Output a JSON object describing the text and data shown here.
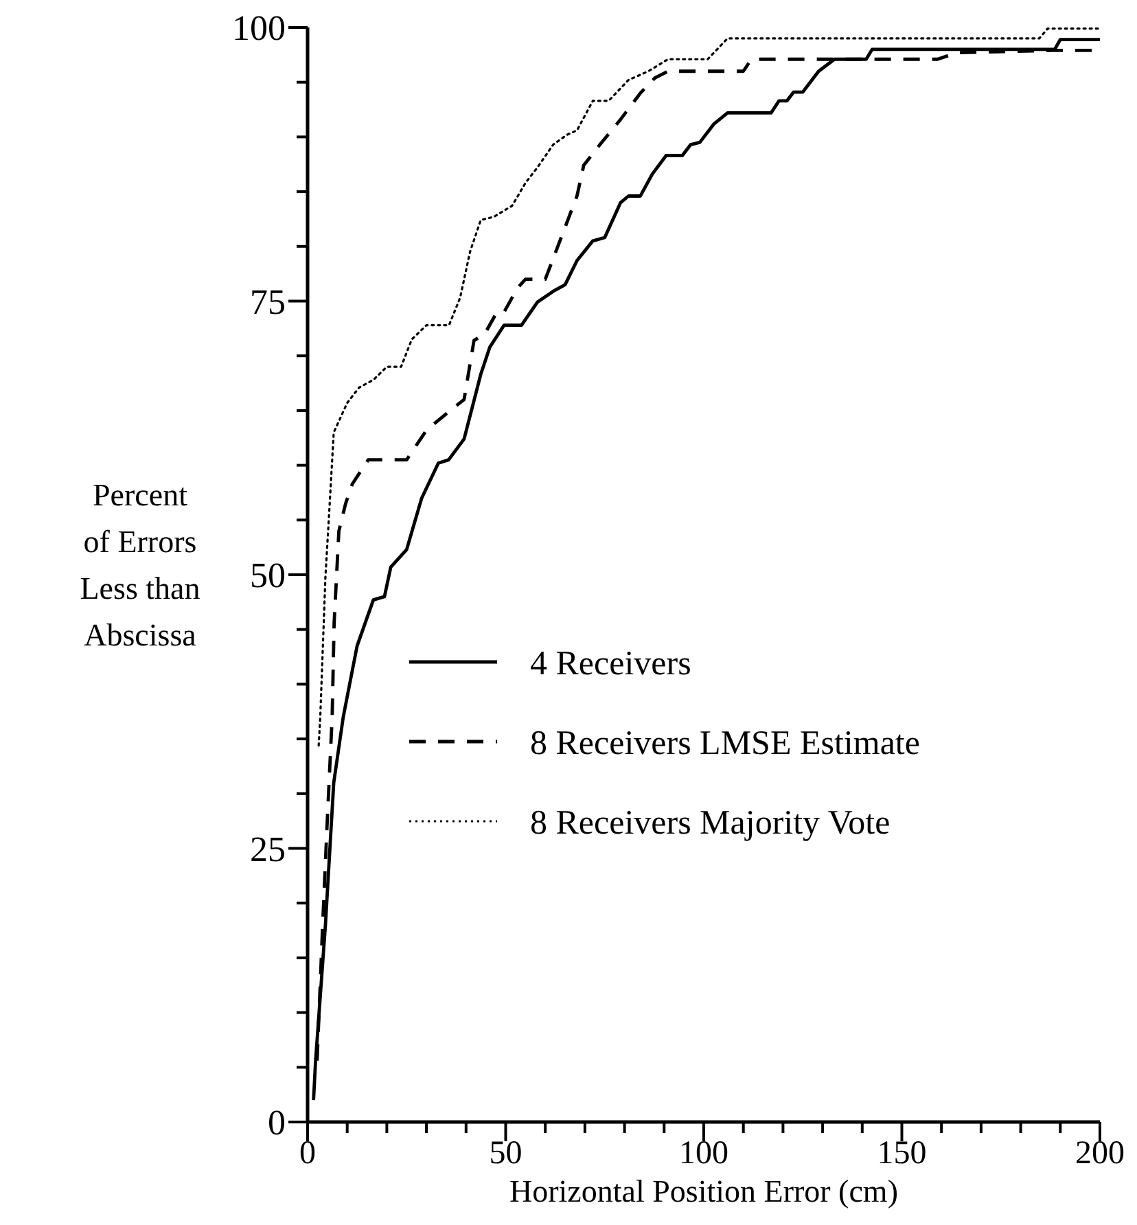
{
  "chart_data": {
    "type": "line",
    "xlabel": "Horizontal Position Error (cm)",
    "ylabel": "Percent\nof Errors\nLess than\nAbscissa",
    "xlim": [
      0,
      200
    ],
    "ylim": [
      0,
      100
    ],
    "xticks": [
      0,
      {
        "value": 10,
        "label": null
      },
      {
        "value": 20,
        "label": null
      },
      {
        "value": 30,
        "label": null
      },
      {
        "value": 40,
        "label": null
      },
      50,
      {
        "value": 60,
        "label": null
      },
      {
        "value": 70,
        "label": null
      },
      {
        "value": 80,
        "label": null
      },
      {
        "value": 90,
        "label": null
      },
      100,
      {
        "value": 110,
        "label": null
      },
      {
        "value": 120,
        "label": null
      },
      {
        "value": 130,
        "label": null
      },
      {
        "value": 140,
        "label": null
      },
      150,
      {
        "value": 160,
        "label": null
      },
      {
        "value": 170,
        "label": null
      },
      {
        "value": 180,
        "label": null
      },
      {
        "value": 190,
        "label": null
      },
      200
    ],
    "yticks": [
      0,
      {
        "value": 5,
        "label": null
      },
      {
        "value": 10,
        "label": null
      },
      {
        "value": 15,
        "label": null
      },
      {
        "value": 20,
        "label": null
      },
      25,
      {
        "value": 30,
        "label": null
      },
      {
        "value": 35,
        "label": null
      },
      {
        "value": 40,
        "label": null
      },
      {
        "value": 45,
        "label": null
      },
      50,
      {
        "value": 55,
        "label": null
      },
      {
        "value": 60,
        "label": null
      },
      {
        "value": 65,
        "label": null
      },
      {
        "value": 70,
        "label": null
      },
      75,
      {
        "value": 80,
        "label": null
      },
      {
        "value": 85,
        "label": null
      },
      {
        "value": 90,
        "label": null
      },
      {
        "value": 95,
        "label": null
      },
      100
    ],
    "grid": false,
    "legend": "right",
    "series": [
      {
        "name": "4 Receivers",
        "color": "#000000",
        "line_style": "solid",
        "x": [
          1.5,
          2,
          4.5,
          6.6,
          9,
          12.5,
          16.6,
          19.4,
          21,
          25,
          28.8,
          33,
          35.6,
          39.5,
          43.7,
          46,
          49.6,
          54,
          58,
          62,
          65,
          68,
          72,
          75,
          79,
          81,
          84,
          87,
          90.5,
          94.6,
          96.7,
          99,
          102.6,
          106,
          117,
          119,
          121,
          122.7,
          125,
          129,
          133,
          141,
          142.5,
          188.6,
          190,
          200
        ],
        "values": [
          2,
          5.5,
          18,
          31,
          37,
          43.5,
          47.7,
          48,
          50.7,
          52.3,
          57,
          60.2,
          60.5,
          62.4,
          68.3,
          70.8,
          72.8,
          72.8,
          74.9,
          75.9,
          76.5,
          78.7,
          80.5,
          80.8,
          84,
          84.6,
          84.6,
          86.6,
          88.3,
          88.3,
          89.3,
          89.5,
          91.2,
          92.2,
          92.2,
          93.3,
          93.3,
          94.1,
          94.1,
          96,
          97.1,
          97.1,
          98,
          98,
          98.9,
          98.9
        ]
      },
      {
        "name": "8 Receivers LMSE Estimate",
        "color": "#000000",
        "line_style": "dashed",
        "x": [
          2.4,
          3.8,
          4.9,
          6.2,
          6.7,
          7.9,
          9.6,
          11.3,
          15.3,
          25,
          30,
          37,
          39.5,
          42,
          44.7,
          47.8,
          49.6,
          53,
          55,
          60,
          64,
          68,
          69.7,
          73.8,
          79,
          84,
          87.7,
          91,
          110,
          112,
          159,
          164,
          188,
          200
        ],
        "values": [
          5.6,
          18,
          27,
          37,
          45.6,
          54,
          56.5,
          58.3,
          60.5,
          60.5,
          63.2,
          65.3,
          66,
          71.4,
          72,
          74,
          74,
          76.2,
          77,
          77,
          80.8,
          84.6,
          87.4,
          89.3,
          91.6,
          94,
          95.4,
          96,
          96,
          97.1,
          97.1,
          97.7,
          97.9,
          97.9
        ]
      },
      {
        "name": "8 Receivers Majority Vote",
        "color": "#000000",
        "line_style": "dotted",
        "x": [
          2.8,
          3.2,
          4.5,
          5.5,
          6.6,
          10,
          13,
          16.6,
          20,
          23.6,
          26.3,
          30,
          35.7,
          38.5,
          41,
          43.7,
          47,
          51.6,
          55,
          58,
          62,
          65.5,
          68,
          72,
          76,
          81,
          86,
          91,
          101,
          106,
          184.7,
          186.8,
          200
        ],
        "values": [
          34.4,
          37,
          49.8,
          56,
          63,
          65.7,
          67.1,
          67.8,
          69,
          69,
          71.5,
          72.8,
          72.8,
          75.3,
          79.5,
          82.4,
          82.7,
          83.7,
          85.8,
          87.2,
          89.3,
          90.2,
          90.6,
          93.3,
          93.3,
          95.2,
          96,
          97.1,
          97.1,
          99,
          99,
          99.9,
          99.9
        ]
      }
    ]
  }
}
